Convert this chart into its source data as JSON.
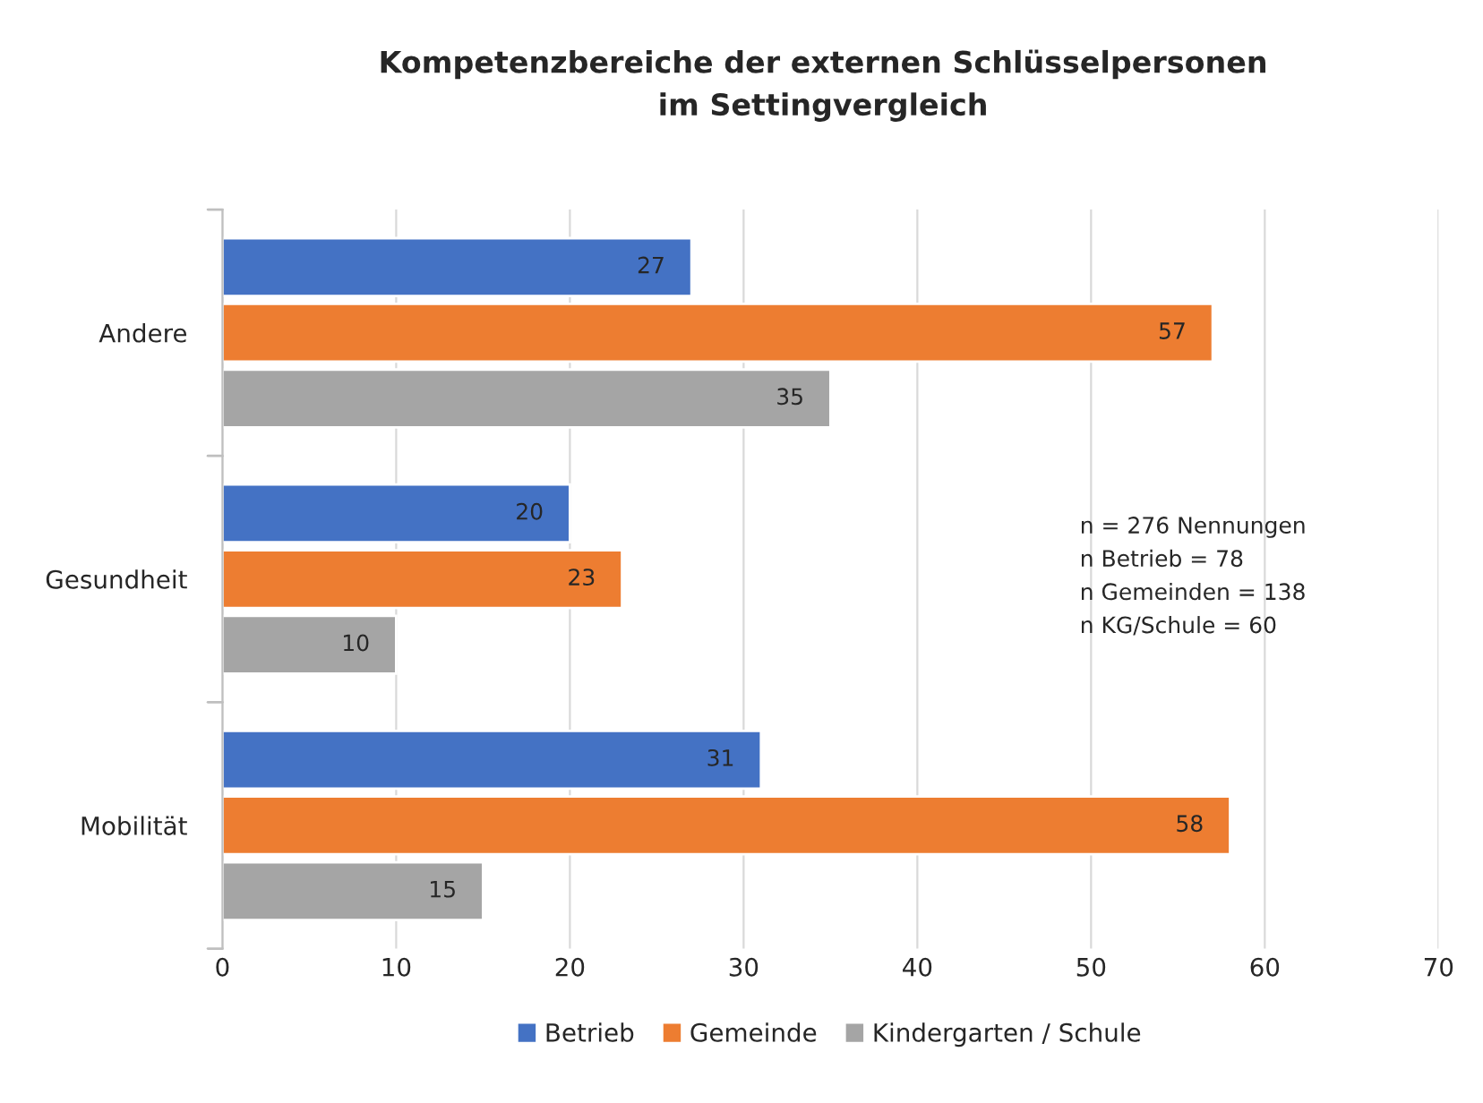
{
  "chart_data": {
    "type": "bar",
    "orientation": "horizontal",
    "title": "Kompetenzbereiche der externen Schlüsselpersonen\nim Settingvergleich",
    "categories": [
      "Andere",
      "Gesundheit",
      "Mobilität"
    ],
    "series": [
      {
        "name": "Betrieb",
        "color": "#4472c4",
        "values": [
          27,
          20,
          31
        ]
      },
      {
        "name": "Gemeinde",
        "color": "#ed7d31",
        "values": [
          57,
          23,
          58
        ]
      },
      {
        "name": "Kindergarten / Schule",
        "color": "#a5a5a5",
        "values": [
          35,
          10,
          15
        ]
      }
    ],
    "xlim": [
      0,
      70
    ],
    "xticks": [
      0,
      10,
      20,
      30,
      40,
      50,
      60,
      70
    ],
    "grid": "x",
    "legend": "bottom",
    "data_labels": true,
    "annotations": [
      "n = 276 Nennungen",
      "n Betrieb = 78",
      "n Gemeinden = 138",
      "n KG/Schule = 60"
    ]
  }
}
